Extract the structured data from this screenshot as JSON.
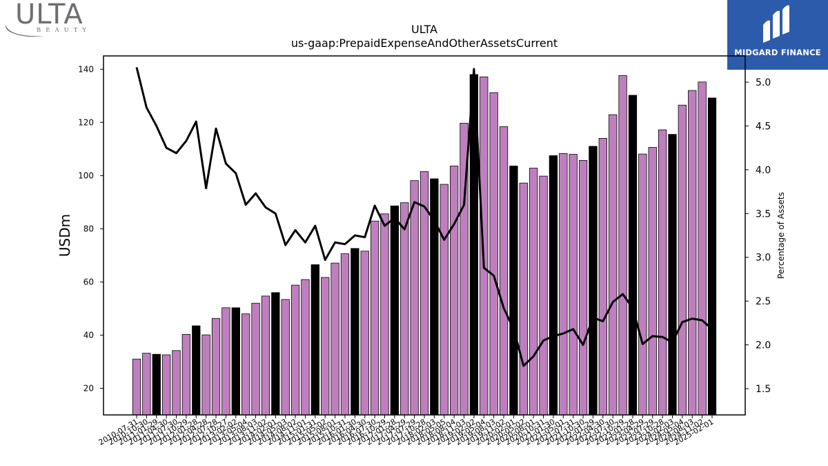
{
  "header": {
    "company_logo_text": "ULTA",
    "company_logo_subtext": "BEAUTY",
    "brand_name": "MIDGARD FINANCE"
  },
  "colors": {
    "bar_regular": "#bf7fbf",
    "bar_highlight": "#000000",
    "line": "#000000",
    "brand_bg": "#2d5bab"
  },
  "chart_data": {
    "type": "bar",
    "title": "ULTA",
    "subtitle": "us-gaap:PrepaidExpenseAndOtherAssetsCurrent",
    "ylabel": "USDm",
    "y2label": "Percentage of Assets",
    "ylim": [
      10,
      145
    ],
    "y2lim": [
      1.2,
      5.3
    ],
    "yticks": [
      20,
      40,
      60,
      80,
      100,
      120,
      140
    ],
    "y2ticks": [
      1.5,
      2.0,
      2.5,
      3.0,
      3.5,
      4.0,
      4.5,
      5.0
    ],
    "grid": false,
    "categories": [
      "2010-07-31",
      "2010-10-30",
      "2011-01-29",
      "2011-04-30",
      "2011-07-30",
      "2011-10-29",
      "2012-01-28",
      "2012-04-28",
      "2012-07-28",
      "2012-10-27",
      "2013-02-02",
      "2013-05-04",
      "2013-08-03",
      "2013-11-02",
      "2014-02-01",
      "2014-05-03",
      "2014-08-02",
      "2014-11-01",
      "2015-01-31",
      "2015-05-02",
      "2015-08-01",
      "2015-10-31",
      "2016-01-30",
      "2016-04-30",
      "2016-07-30",
      "2016-10-29",
      "2017-01-28",
      "2017-04-29",
      "2017-07-29",
      "2017-10-28",
      "2018-02-03",
      "2018-05-05",
      "2018-08-04",
      "2018-11-03",
      "2019-02-02",
      "2019-05-04",
      "2019-08-03",
      "2019-11-02",
      "2020-02-01",
      "2020-05-02",
      "2020-08-01",
      "2020-10-31",
      "2021-01-30",
      "2021-05-01",
      "2021-07-31",
      "2021-10-30",
      "2022-01-29",
      "2022-04-30",
      "2022-07-30",
      "2022-10-29",
      "2023-01-28",
      "2023-04-29",
      "2023-07-29",
      "2023-10-28",
      "2024-02-03",
      "2024-05-04",
      "2024-08-03",
      "2024-11-02",
      "2025-02-01"
    ],
    "series": [
      {
        "kind": "bar",
        "axis": "left",
        "values": [
          31,
          33.2,
          32.8,
          32.6,
          34.2,
          40.3,
          43.5,
          40.1,
          46.3,
          50.3,
          50.3,
          48,
          52,
          54.7,
          56,
          53.4,
          58.8,
          60.9,
          66.5,
          61.7,
          67.1,
          70.6,
          72.6,
          71.6,
          82.9,
          85.6,
          88.6,
          89.8,
          98.1,
          101.5,
          98.8,
          96.7,
          103.6,
          119.7,
          138,
          137.1,
          131.2,
          118.4,
          103.6,
          97.2,
          102.8,
          99.8,
          107.5,
          108.3,
          108,
          105.7,
          111,
          114,
          122.9,
          137.6,
          130.2,
          108.1,
          110.6,
          117.2,
          115.5,
          126.5,
          132,
          135.2,
          129.2
        ],
        "highlight": [
          false,
          false,
          true,
          false,
          false,
          false,
          true,
          false,
          false,
          false,
          true,
          false,
          false,
          false,
          true,
          false,
          false,
          false,
          true,
          false,
          false,
          false,
          true,
          false,
          false,
          false,
          true,
          false,
          false,
          false,
          true,
          false,
          false,
          false,
          true,
          false,
          false,
          false,
          true,
          false,
          false,
          false,
          true,
          false,
          false,
          false,
          true,
          false,
          false,
          false,
          true,
          false,
          false,
          false,
          true,
          false,
          false,
          false,
          true
        ]
      },
      {
        "kind": "line",
        "axis": "right",
        "values": [
          5.17,
          4.71,
          4.5,
          4.25,
          4.19,
          4.33,
          4.55,
          3.79,
          4.47,
          4.07,
          3.96,
          3.6,
          3.73,
          3.57,
          3.5,
          3.14,
          3.31,
          3.17,
          3.36,
          2.97,
          3.17,
          3.15,
          3.25,
          3.23,
          3.59,
          3.36,
          3.45,
          3.32,
          3.63,
          3.58,
          3.42,
          3.2,
          3.38,
          3.6,
          5.15,
          2.88,
          2.79,
          2.42,
          2.18,
          1.76,
          1.87,
          2.05,
          2.1,
          2.13,
          2.18,
          2,
          2.31,
          2.27,
          2.49,
          2.58,
          2.42,
          2.01,
          2.1,
          2.09,
          2.03,
          2.26,
          2.3,
          2.28,
          2.18
        ]
      }
    ]
  }
}
